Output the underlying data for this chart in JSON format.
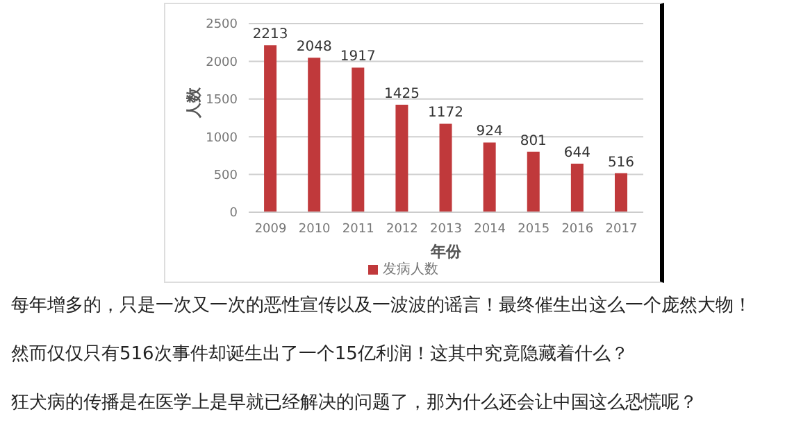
{
  "chart_data": {
    "type": "bar",
    "categories": [
      "2009",
      "2010",
      "2011",
      "2012",
      "2013",
      "2014",
      "2015",
      "2016",
      "2017"
    ],
    "series": [
      {
        "name": "发病人数",
        "color": "#c0393b",
        "values": [
          2213,
          2048,
          1917,
          1425,
          1172,
          924,
          801,
          644,
          516
        ]
      }
    ],
    "ylim": [
      0,
      2500
    ],
    "yticks": [
      0,
      500,
      1000,
      1500,
      2000,
      2500
    ],
    "xlabel": "年份",
    "ylabel": "人数",
    "grid": "y",
    "legend": "bottom",
    "data_labels": true,
    "annotations": [
      "每年增多的，只是一次又一次的恶性宣传以及一波波的谣言！最终催生出这么一个庞然大物！",
      "然而仅仅只有516次事件却诞生出了一个15亿利润！这其中究竟隐藏着什么？",
      "狂犬病的传播是在医学上是早就已经解决的问题了，那为什么还会让中国这么恐慌呢？"
    ]
  }
}
